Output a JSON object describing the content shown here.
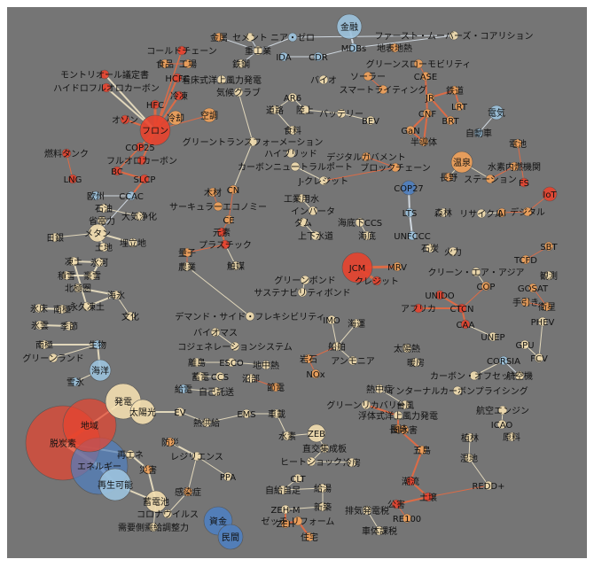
{
  "colors": {
    "background": "#757575",
    "hot": "#e8432e",
    "warm": "#f2a25a",
    "pale": "#f4dfb0",
    "cool": "#9cc3de",
    "cold": "#4f7fc0",
    "edge_hot": "#ef6a3e",
    "edge_pale": "#f5e9c8",
    "edge_cool": "#dfe9f2"
  },
  "nodes": [
    {
      "id": "jinzoku",
      "label": "金属"
    },
    {
      "id": "cement",
      "label": "セメント"
    },
    {
      "id": "near-zero",
      "label": "ニア・ゼロ"
    },
    {
      "id": "kinyu",
      "label": "金融"
    },
    {
      "id": "fast-movers",
      "label": "ファースト・ムーバーズ・コアリション"
    },
    {
      "id": "cold-chain",
      "label": "コールドチェーン"
    },
    {
      "id": "jukogyo",
      "label": "重工業"
    },
    {
      "id": "ida",
      "label": "IDA"
    },
    {
      "id": "cdr",
      "label": "CDR"
    },
    {
      "id": "mdbs",
      "label": "MDBs"
    },
    {
      "id": "chijo-chinetsu",
      "label": "地表地熱"
    },
    {
      "id": "shokuhin",
      "label": "食品"
    },
    {
      "id": "kojo",
      "label": "工場"
    },
    {
      "id": "tekko",
      "label": "鉄鋼"
    },
    {
      "id": "solar",
      "label": "ソーラー"
    },
    {
      "id": "green-slow",
      "label": "グリーンスローモビリティ"
    },
    {
      "id": "montreal",
      "label": "モントリオール議定書"
    },
    {
      "id": "hcfc",
      "label": "HCFC"
    },
    {
      "id": "chakusho",
      "label": "着床式洋上風力発電"
    },
    {
      "id": "bio",
      "label": "バイオ"
    },
    {
      "id": "case",
      "label": "CASE"
    },
    {
      "id": "hydro-fc",
      "label": "ハイドロフルオロカーボン"
    },
    {
      "id": "reito",
      "label": "冷凍"
    },
    {
      "id": "kiko-club",
      "label": "気候クラブ"
    },
    {
      "id": "smart-light",
      "label": "スマートライティング"
    },
    {
      "id": "tetsudo",
      "label": "鉄道"
    },
    {
      "id": "hfc",
      "label": "HFC"
    },
    {
      "id": "ar6",
      "label": "AR6"
    },
    {
      "id": "jr",
      "label": "JR"
    },
    {
      "id": "lrt",
      "label": "LRT"
    },
    {
      "id": "doro",
      "label": "道路"
    },
    {
      "id": "rikujo",
      "label": "陸上"
    },
    {
      "id": "battery",
      "label": "バッテリー"
    },
    {
      "id": "cnf",
      "label": "CNF"
    },
    {
      "id": "brt",
      "label": "BRT"
    },
    {
      "id": "denki",
      "label": "電気"
    },
    {
      "id": "ozone",
      "label": "オゾン"
    },
    {
      "id": "reikyaku",
      "label": "冷却"
    },
    {
      "id": "kucho",
      "label": "空調"
    },
    {
      "id": "bev",
      "label": "BEV"
    },
    {
      "id": "gan",
      "label": "GaN"
    },
    {
      "id": "freon",
      "label": "フロン"
    },
    {
      "id": "shokuryo",
      "label": "食料"
    },
    {
      "id": "jidosha",
      "label": "自動車"
    },
    {
      "id": "handotai",
      "label": "半導体"
    },
    {
      "id": "green-trans",
      "label": "グリーントランスフォーメーション"
    },
    {
      "id": "cop25",
      "label": "COP25"
    },
    {
      "id": "hybrid",
      "label": "ハイブリッド"
    },
    {
      "id": "denchi",
      "label": "電池"
    },
    {
      "id": "nenryo-tank",
      "label": "燃料タンク"
    },
    {
      "id": "fluoro-carbon",
      "label": "フルオロカーボン"
    },
    {
      "id": "digital-gov",
      "label": "デジタルガバメント"
    },
    {
      "id": "carbon-neutral-port",
      "label": "カーボンニュートラルポート"
    },
    {
      "id": "blockchain",
      "label": "ブロックチェーン"
    },
    {
      "id": "onsen",
      "label": "温泉"
    },
    {
      "id": "suiso-nenryo",
      "label": "水素内燃機関"
    },
    {
      "id": "bc",
      "label": "BC"
    },
    {
      "id": "slcp",
      "label": "SLCP"
    },
    {
      "id": "jcredit",
      "label": "J-クレジット"
    },
    {
      "id": "nagano",
      "label": "長野"
    },
    {
      "id": "station",
      "label": "ステーション"
    },
    {
      "id": "fs",
      "label": "FS"
    },
    {
      "id": "lng",
      "label": "LNG"
    },
    {
      "id": "cop27",
      "label": "COP27"
    },
    {
      "id": "oshu",
      "label": "欧州"
    },
    {
      "id": "ccac",
      "label": "CCAC"
    },
    {
      "id": "mokuzai",
      "label": "木材"
    },
    {
      "id": "cn",
      "label": "CN"
    },
    {
      "id": "iot",
      "label": "IoT"
    },
    {
      "id": "sekitan",
      "label": "石油"
    },
    {
      "id": "circular",
      "label": "サーキュラーエコノミー"
    },
    {
      "id": "kogyo-yosui",
      "label": "工業用水"
    },
    {
      "id": "inverter",
      "label": "インバータ"
    },
    {
      "id": "taiki-josei",
      "label": "大気浄化"
    },
    {
      "id": "ce",
      "label": "CE"
    },
    {
      "id": "genso",
      "label": "元素"
    },
    {
      "id": "dam",
      "label": "ダム"
    },
    {
      "id": "kaitei-ccs",
      "label": "海底下CCS"
    },
    {
      "id": "lts",
      "label": "LTS"
    },
    {
      "id": "shinrin",
      "label": "森林"
    },
    {
      "id": "recycle",
      "label": "リサイクル"
    },
    {
      "id": "ai",
      "label": "AI"
    },
    {
      "id": "digital",
      "label": "デジタル"
    },
    {
      "id": "shodenryoku",
      "label": "省電力"
    },
    {
      "id": "plastic",
      "label": "プラスチック"
    },
    {
      "id": "jogesuido",
      "label": "上下水道"
    },
    {
      "id": "kaitei",
      "label": "海底"
    },
    {
      "id": "unfccc",
      "label": "UNFCCC"
    },
    {
      "id": "methane",
      "label": "メタン"
    },
    {
      "id": "nichigin",
      "label": "日銀"
    },
    {
      "id": "umetate",
      "label": "埋立地"
    },
    {
      "id": "sekitan2",
      "label": "石炭"
    },
    {
      "id": "karyoku",
      "label": "火力"
    },
    {
      "id": "sbt",
      "label": "SBT"
    },
    {
      "id": "tochi",
      "label": "土地"
    },
    {
      "id": "ryoshi",
      "label": "量子"
    },
    {
      "id": "tcfd",
      "label": "TCFD"
    },
    {
      "id": "tokai",
      "label": "凍土"
    },
    {
      "id": "hyoga",
      "label": "氷河"
    },
    {
      "id": "nogyo",
      "label": "農業"
    },
    {
      "id": "shokubai",
      "label": "触媒"
    },
    {
      "id": "jcm",
      "label": "JCM"
    },
    {
      "id": "mrv",
      "label": "MRV"
    },
    {
      "id": "clean-air-asia",
      "label": "クリーン・エア・アジア"
    },
    {
      "id": "green-bond",
      "label": "グリーンボンド"
    },
    {
      "id": "kansoku",
      "label": "観測"
    },
    {
      "id": "sekisetsu",
      "label": "積雪"
    },
    {
      "id": "kosetsu",
      "label": "豪雪"
    },
    {
      "id": "sustain-bond",
      "label": "サステナビリティボンド"
    },
    {
      "id": "credit",
      "label": "クレジット"
    },
    {
      "id": "cop",
      "label": "COP"
    },
    {
      "id": "gosat",
      "label": "GOSAT"
    },
    {
      "id": "hokkyoku",
      "label": "北極圏"
    },
    {
      "id": "kaihyo",
      "label": "海氷"
    },
    {
      "id": "unido",
      "label": "UNIDO"
    },
    {
      "id": "te-ki",
      "label": "手引き"
    },
    {
      "id": "eisei",
      "label": "衛星"
    },
    {
      "id": "eikyu-todo",
      "label": "永久凍土"
    },
    {
      "id": "africa",
      "label": "アフリカ"
    },
    {
      "id": "ctcn",
      "label": "CTCN"
    },
    {
      "id": "hyosho",
      "label": "氷床"
    },
    {
      "id": "nansei",
      "label": "南極"
    },
    {
      "id": "bunka",
      "label": "文化"
    },
    {
      "id": "demand-side",
      "label": "デマンド・サイド・フレキシビリティ"
    },
    {
      "id": "imo",
      "label": "IMO"
    },
    {
      "id": "kaiun",
      "label": "海運"
    },
    {
      "id": "caa",
      "label": "CAA"
    },
    {
      "id": "phev",
      "label": "PHEV"
    },
    {
      "id": "hyoun",
      "label": "氷雲"
    },
    {
      "id": "kisetsu",
      "label": "季節"
    },
    {
      "id": "biomass",
      "label": "バイオマス"
    },
    {
      "id": "cogen",
      "label": "コジェネレーションシステム"
    },
    {
      "id": "senpaku",
      "label": "船舶"
    },
    {
      "id": "unep",
      "label": "UNEP"
    },
    {
      "id": "koan",
      "label": "南極"
    },
    {
      "id": "seibutsu",
      "label": "生物"
    },
    {
      "id": "taiyo-netsu",
      "label": "太陽熱"
    },
    {
      "id": "gpu",
      "label": "GPU"
    },
    {
      "id": "green-land",
      "label": "グリーンランド"
    },
    {
      "id": "gankyo",
      "label": "岩石"
    },
    {
      "id": "ammonia",
      "label": "アンモニア"
    },
    {
      "id": "corsia",
      "label": "CORSIA"
    },
    {
      "id": "fcv",
      "label": "FCV"
    },
    {
      "id": "ritojima",
      "label": "離島"
    },
    {
      "id": "esco",
      "label": "ESCO"
    },
    {
      "id": "chichu-netsu",
      "label": "地中熱"
    },
    {
      "id": "danbo",
      "label": "暖房"
    },
    {
      "id": "kaiyo",
      "label": "海洋"
    },
    {
      "id": "nox",
      "label": "NOx"
    },
    {
      "id": "carbon-offset",
      "label": "カーボン・オフセット"
    },
    {
      "id": "kokuki",
      "label": "航空機"
    },
    {
      "id": "chikuden",
      "label": "蓄電"
    },
    {
      "id": "ccs",
      "label": "CCS"
    },
    {
      "id": "shobu",
      "label": "沼部"
    },
    {
      "id": "setsuden",
      "label": "雪氷"
    },
    {
      "id": "setsuden2",
      "label": "節電"
    },
    {
      "id": "jihatsu",
      "label": "熱中症"
    },
    {
      "id": "internal-cp",
      "label": "インターナルカーボンプライシング"
    },
    {
      "id": "jiko-shoki",
      "label": "自己託送"
    },
    {
      "id": "kyuden",
      "label": "給電"
    },
    {
      "id": "taifu",
      "label": "台風"
    },
    {
      "id": "hatsuden",
      "label": "発電"
    },
    {
      "id": "green-recovery",
      "label": "グリーンリカバリー"
    },
    {
      "id": "fuyu-shiki",
      "label": "浮体式洋上風力発電"
    },
    {
      "id": "kokuki-engine",
      "label": "航空エンジン"
    },
    {
      "id": "taiyoko",
      "label": "太陽光"
    },
    {
      "id": "ev",
      "label": "EV"
    },
    {
      "id": "ems",
      "label": "EMS"
    },
    {
      "id": "shaken",
      "label": "車載"
    },
    {
      "id": "nagasaki",
      "label": "長崎"
    },
    {
      "id": "icao",
      "label": "ICAO"
    },
    {
      "id": "netsu-kyokyu",
      "label": "熱供給"
    },
    {
      "id": "chiiki",
      "label": "地域"
    },
    {
      "id": "suiso",
      "label": "水素"
    },
    {
      "id": "zeb",
      "label": "ZEB"
    },
    {
      "id": "fudo-kairyo",
      "label": "風水害"
    },
    {
      "id": "gentan",
      "label": "原料"
    },
    {
      "id": "bosai",
      "label": "防災"
    },
    {
      "id": "shokubutsu",
      "label": "植林"
    },
    {
      "id": "datsutanso",
      "label": "脱炭素"
    },
    {
      "id": "chokoryu",
      "label": "直交集成板"
    },
    {
      "id": "heat-shock",
      "label": "ヒートショック"
    },
    {
      "id": "goto",
      "label": "五島"
    },
    {
      "id": "saiene",
      "label": "再エネ"
    },
    {
      "id": "resilience",
      "label": "レジリエンス"
    },
    {
      "id": "reibo",
      "label": "冷房"
    },
    {
      "id": "shicchi",
      "label": "湿地"
    },
    {
      "id": "energy",
      "label": "エネルギー"
    },
    {
      "id": "saigai",
      "label": "災害"
    },
    {
      "id": "clt",
      "label": "CLT"
    },
    {
      "id": "saisei-kano",
      "label": "再生可能"
    },
    {
      "id": "ppa",
      "label": "PPA"
    },
    {
      "id": "jishoku",
      "label": "自給自足"
    },
    {
      "id": "kyuto",
      "label": "給湯"
    },
    {
      "id": "chosa",
      "label": "潮流"
    },
    {
      "id": "redd",
      "label": "REDD+"
    },
    {
      "id": "kansensho",
      "label": "感染症"
    },
    {
      "id": "dojo",
      "label": "土壌"
    },
    {
      "id": "chikuden-chi",
      "label": "蓄電池"
    },
    {
      "id": "shinchiku",
      "label": "新築"
    },
    {
      "id": "zeh-m",
      "label": "ZEH-M"
    },
    {
      "id": "haiki-hatsuden",
      "label": "排気発電税"
    },
    {
      "id": "corona",
      "label": "コロナウイルス"
    },
    {
      "id": "kogai",
      "label": "公害"
    },
    {
      "id": "shikin",
      "label": "資金"
    },
    {
      "id": "zeh",
      "label": "ZEH"
    },
    {
      "id": "reform",
      "label": "ゼッチ リフォーム"
    },
    {
      "id": "re100",
      "label": "RE100"
    },
    {
      "id": "demand-adjust",
      "label": "需要側需給調整力"
    },
    {
      "id": "minkan",
      "label": "民間"
    },
    {
      "id": "jutaku",
      "label": "住宅"
    },
    {
      "id": "shatai-zei",
      "label": "車体課税"
    }
  ]
}
